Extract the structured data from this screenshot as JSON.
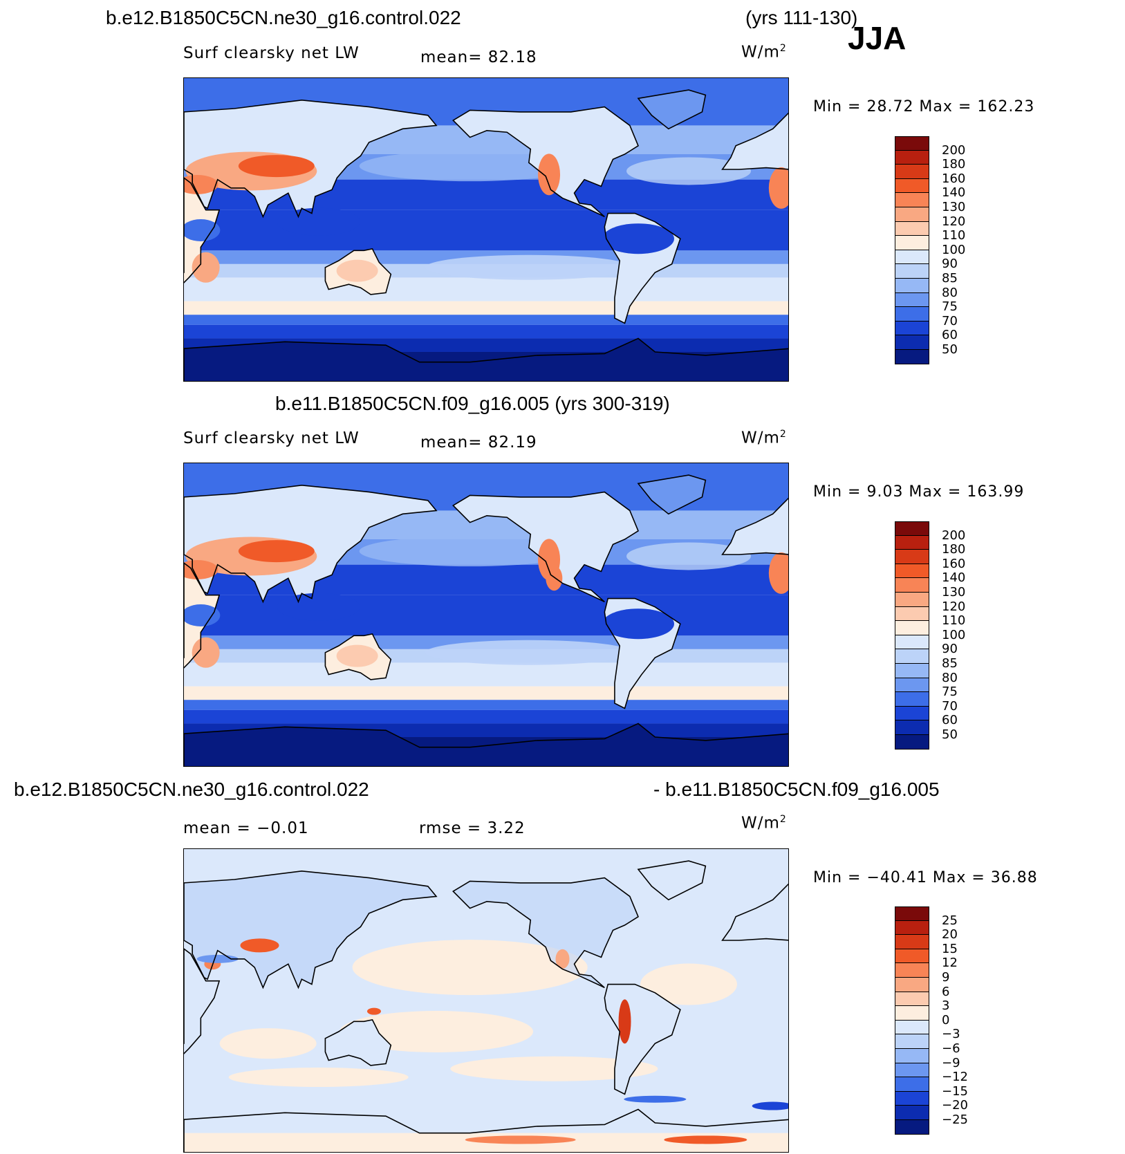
{
  "season": "JJA",
  "units": "W/m",
  "units_sup": "2",
  "panels": [
    {
      "title_left": "b.e12.B1850C5CN.ne30_g16.control.022",
      "title_right": "(yrs 111-130)",
      "field": "Surf clearsky net LW",
      "stat_text": "mean=  82.18",
      "minmax": "Min =   28.72 Max = 162.23",
      "kind": "abs",
      "levels": [
        "200",
        "180",
        "160",
        "140",
        "130",
        "120",
        "110",
        "100",
        "90",
        "85",
        "80",
        "75",
        "70",
        "60",
        "50"
      ]
    },
    {
      "title_left": "b.e11.B1850C5CN.f09_g16.005 (yrs 300-319)",
      "title_right": "",
      "field": "Surf clearsky net LW",
      "stat_text": "mean=  82.19",
      "minmax": "Min =    9.03 Max = 163.99",
      "kind": "abs",
      "levels": [
        "200",
        "180",
        "160",
        "140",
        "130",
        "120",
        "110",
        "100",
        "90",
        "85",
        "80",
        "75",
        "70",
        "60",
        "50"
      ]
    },
    {
      "title_left": "b.e12.B1850C5CN.ne30_g16.control.022",
      "title_right": "- b.e11.B1850C5CN.f09_g16.005",
      "field": "mean =   −0.01",
      "stat_text": "rmse =    3.22",
      "minmax": "Min = −40.41  Max =   36.88",
      "kind": "diff",
      "levels": [
        "25",
        "20",
        "15",
        "12",
        "9",
        "6",
        "3",
        "0",
        "−3",
        "−6",
        "−9",
        "−12",
        "−15",
        "−20",
        "−25"
      ]
    }
  ],
  "palette": [
    "#7a0a0a",
    "#b8200f",
    "#d83a17",
    "#f05a28",
    "#f88456",
    "#f9a882",
    "#fccbb0",
    "#fdeedf",
    "#dbe8fb",
    "#bcd3f8",
    "#96b8f5",
    "#6c97f0",
    "#3d6ee8",
    "#1b44d6",
    "#0c2cb0",
    "#061a80"
  ]
}
